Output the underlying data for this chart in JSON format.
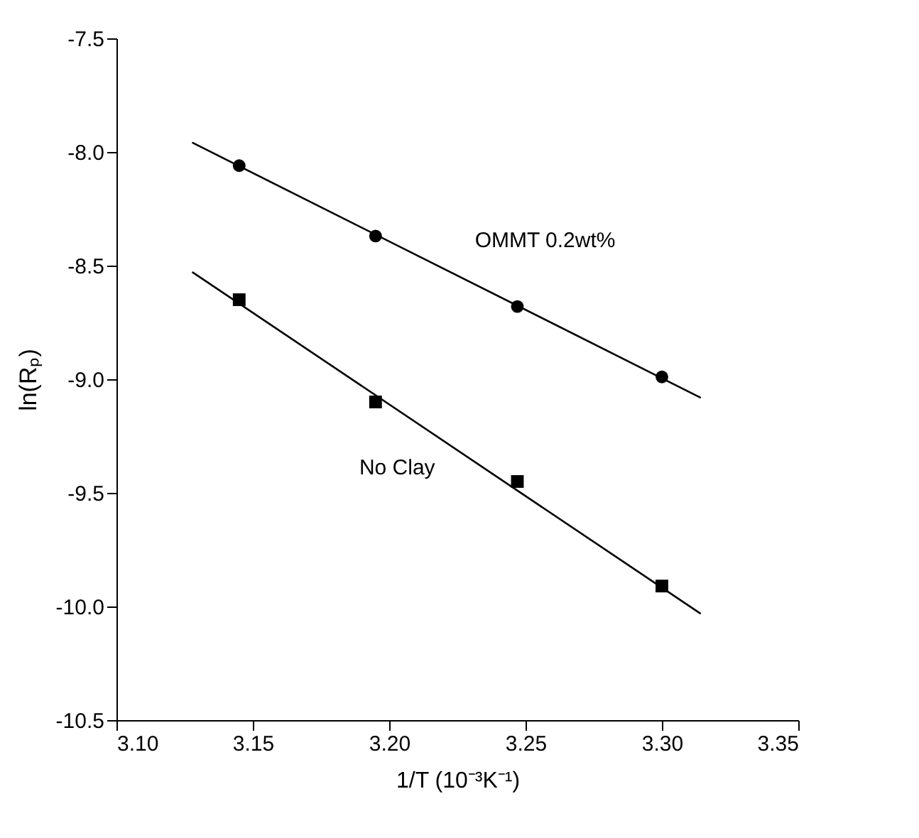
{
  "chart_data": {
    "type": "scatter",
    "xlabel": "1/T  (10⁻³K⁻¹)",
    "ylabel": "ln(Rₚ)",
    "xlim": [
      3.1,
      3.35
    ],
    "ylim": [
      -10.5,
      -7.5
    ],
    "xticks": [
      {
        "value": 3.1,
        "label": "3.10"
      },
      {
        "value": 3.15,
        "label": "3.15"
      },
      {
        "value": 3.2,
        "label": "3.20"
      },
      {
        "value": 3.25,
        "label": "3.25"
      },
      {
        "value": 3.3,
        "label": "3.30"
      },
      {
        "value": 3.35,
        "label": "3.35"
      }
    ],
    "yticks": [
      {
        "value": -10.5,
        "label": "-10.5"
      },
      {
        "value": -10,
        "label": "-10.0"
      },
      {
        "value": -9.5,
        "label": "-9.5"
      },
      {
        "value": -9,
        "label": "-9.0"
      },
      {
        "value": -8.5,
        "label": "-8.5"
      },
      {
        "value": -8,
        "label": "-8.0"
      },
      {
        "value": -7.5,
        "label": "-7.5"
      }
    ],
    "grid": false,
    "series": [
      {
        "name": "OMMT 0.2wt%",
        "marker": "circle",
        "color": "#000000",
        "x": [
          3.145,
          3.195,
          3.247,
          3.3
        ],
        "values": [
          -8.06,
          -8.37,
          -8.68,
          -8.99
        ]
      },
      {
        "name": "No Clay",
        "marker": "square",
        "color": "#000000",
        "x": [
          3.145,
          3.195,
          3.247,
          3.3
        ],
        "values": [
          -8.65,
          -9.1,
          -9.45,
          -9.91
        ]
      },
      {
        "type": "line",
        "line_style": "solid",
        "color": "#000000",
        "x": [
          3.128,
          3.314
        ],
        "values": [
          -7.96,
          -9.08
        ]
      },
      {
        "type": "line",
        "line_style": "solid",
        "color": "#000000",
        "x": [
          3.128,
          3.314
        ],
        "values": [
          -8.53,
          -10.03
        ]
      }
    ]
  }
}
